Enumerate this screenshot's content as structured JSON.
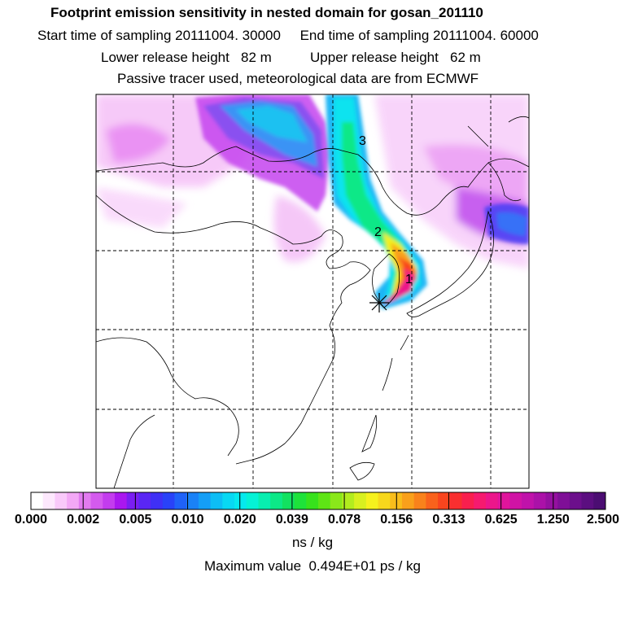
{
  "header": {
    "title": "Footprint emission sensitivity in nested domain for gosan_201110",
    "sampling": "Start time of sampling 20111004. 30000     End time of sampling 20111004. 60000",
    "release": "Lower release height   82 m          Upper release height   62 m",
    "tracer": "Passive tracer used, meteorological data are from ECMWF"
  },
  "map": {
    "trajectory_labels": [
      "3",
      "2",
      "1"
    ],
    "release_marker": "receptor-star-icon"
  },
  "colorbar": {
    "tick_labels": [
      "0.000",
      "0.002",
      "0.005",
      "0.010",
      "0.020",
      "0.039",
      "0.078",
      "0.156",
      "0.313",
      "0.625",
      "1.250",
      "2.500"
    ],
    "colors": [
      "#ffffff",
      "#fde8fd",
      "#f9c9fa",
      "#f3a8f6",
      "#e27bf0",
      "#d45aee",
      "#c33cee",
      "#aa17ef",
      "#7a1ef2",
      "#5a26f4",
      "#3f30f6",
      "#2942f8",
      "#1f62f8",
      "#1a82f7",
      "#149ef6",
      "#0dbdf5",
      "#08d8f3",
      "#05e9ee",
      "#05f2d6",
      "#08eeb0",
      "#0ce887",
      "#12e260",
      "#1ee23a",
      "#37e21c",
      "#5ee515",
      "#8ae81a",
      "#b2ec1e",
      "#d8f01f",
      "#f6f11d",
      "#f7d81c",
      "#f8bd1b",
      "#f9a01b",
      "#f9821b",
      "#f9621c",
      "#f9451e",
      "#f92f30",
      "#f91f4e",
      "#f61a6f",
      "#ec168b",
      "#e0149c",
      "#d013a5",
      "#c012aa",
      "#ab11a8",
      "#9510a0",
      "#7f0f97",
      "#6c0f8c",
      "#5b0e80",
      "#4b0d72"
    ],
    "units": "ns / kg",
    "maximum": "Maximum value  0.494E+01 ps / kg"
  }
}
